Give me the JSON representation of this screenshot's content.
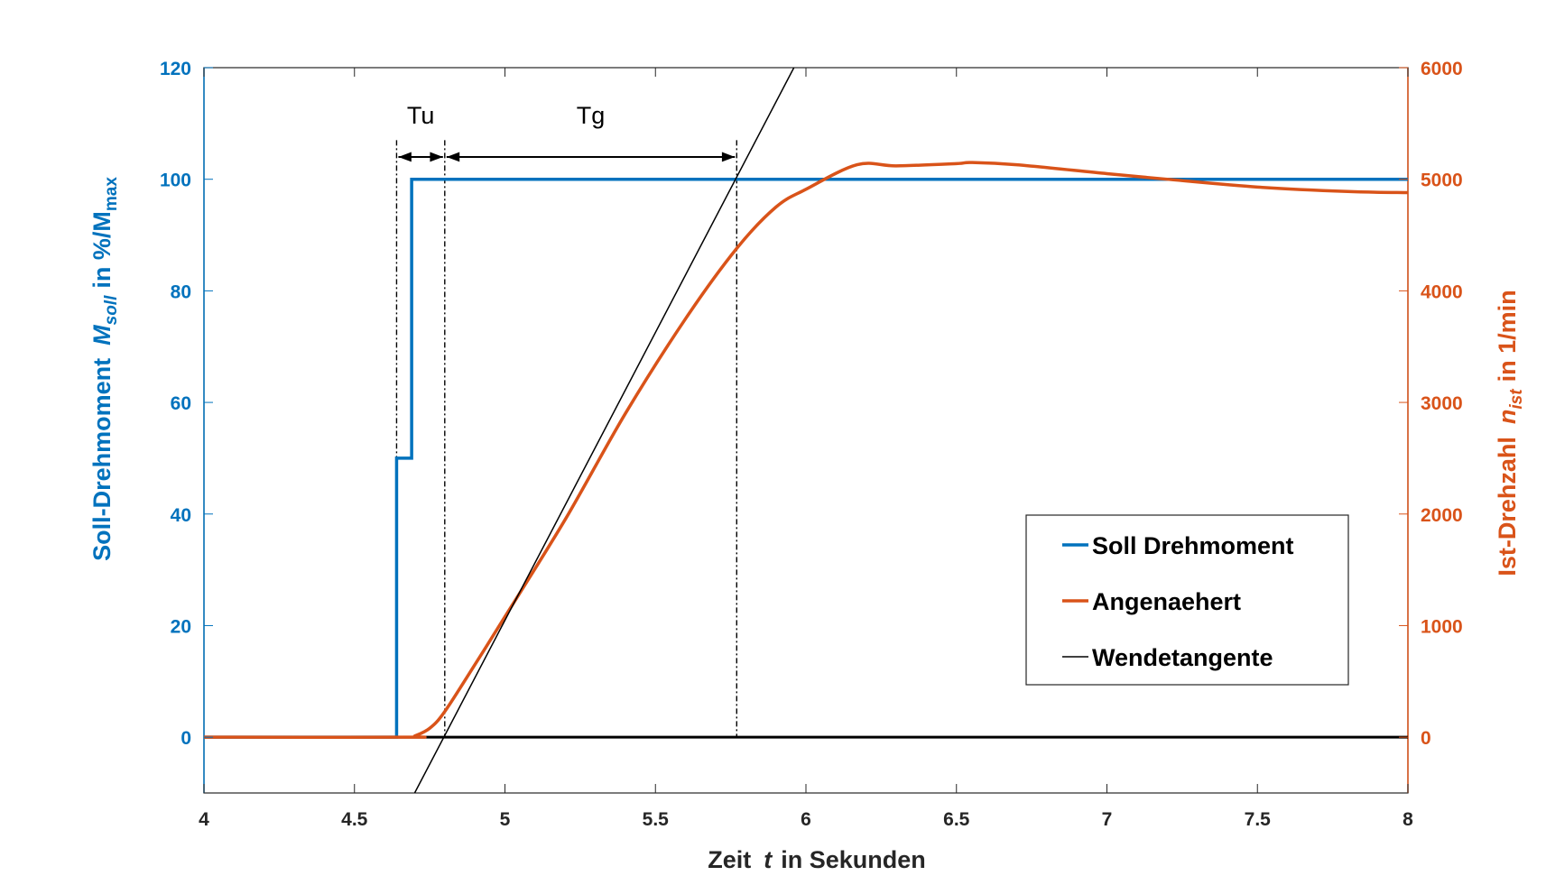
{
  "chart_data": {
    "type": "line",
    "xlabel_prefix": "Zeit",
    "xlabel_var": "t",
    "xlabel_suffix": "in Sekunden",
    "ylabel_left_prefix": "Soll-Drehmoment",
    "ylabel_left_var": "M",
    "ylabel_left_var_sub": "soll",
    "ylabel_left_mid": "in %/M",
    "ylabel_left_mid_sub": "max",
    "ylabel_right_prefix": "Ist-Drehzahl",
    "ylabel_right_var": "n",
    "ylabel_right_var_sub": "ist",
    "ylabel_right_suffix": "in 1/min",
    "xlim": [
      4,
      8
    ],
    "ylim_left": [
      -10,
      120
    ],
    "ylim_right": [
      -500,
      6000
    ],
    "x_ticks": [
      "4",
      "4.5",
      "5",
      "5.5",
      "6",
      "6.5",
      "7",
      "7.5",
      "8"
    ],
    "y_left_ticks": [
      "0",
      "20",
      "40",
      "60",
      "80",
      "100",
      "120"
    ],
    "y_right_ticks": [
      "0",
      "1000",
      "2000",
      "3000",
      "4000",
      "5000",
      "6000"
    ],
    "grid": false,
    "legend_position": "lower-right",
    "colors": {
      "left_axis": "#0072BD",
      "right_axis": "#D95319",
      "tangent": "#000000",
      "frame": "#262626"
    },
    "series": [
      {
        "name": "Soll Drehmoment",
        "axis": "left",
        "x": [
          4.0,
          4.64,
          4.64,
          4.69,
          4.69,
          8.0
        ],
        "y": [
          0,
          0,
          50,
          50,
          100,
          100
        ]
      },
      {
        "name": "Angenaehert",
        "axis": "right",
        "x": [
          4.0,
          4.68,
          4.7,
          4.75,
          4.8,
          4.9,
          5.0,
          5.2,
          5.4,
          5.6,
          5.77,
          5.9,
          6.0,
          6.17,
          6.3,
          6.5,
          6.55,
          6.7,
          7.0,
          7.2,
          7.5,
          7.8,
          8.0
        ],
        "y": [
          0,
          0,
          10,
          80,
          230,
          650,
          1080,
          1950,
          2900,
          3750,
          4380,
          4750,
          4910,
          5130,
          5120,
          5140,
          5150,
          5130,
          5050,
          5000,
          4930,
          4890,
          4880
        ]
      },
      {
        "name": "Wendetangente",
        "axis": "right",
        "x": [
          4.7,
          5.96
        ],
        "y": [
          -500,
          6000
        ]
      }
    ],
    "baseline": {
      "axis": "right",
      "value": 0
    },
    "annotations": [
      {
        "label": "Tu",
        "from": 4.64,
        "to": 4.8,
        "y_left": 104
      },
      {
        "label": "Tg",
        "from": 4.8,
        "to": 5.77,
        "y_left": 104
      }
    ],
    "vlines": [
      4.64,
      4.8,
      5.77
    ]
  }
}
